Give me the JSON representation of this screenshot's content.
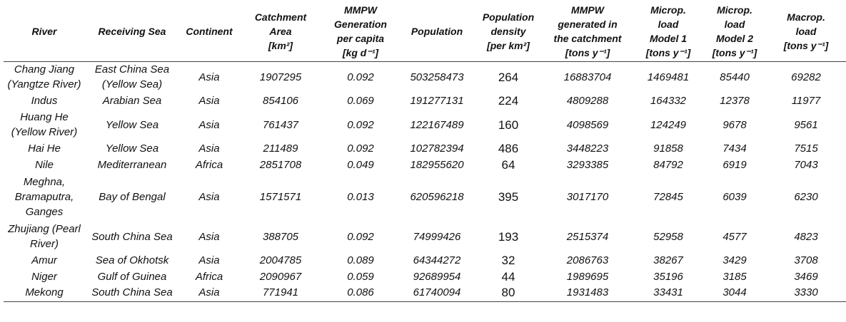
{
  "table": {
    "headers": [
      {
        "lines": [
          "River"
        ]
      },
      {
        "lines": [
          "Receiving Sea"
        ]
      },
      {
        "lines": [
          "Continent"
        ]
      },
      {
        "lines": [
          "Catchment",
          "Area",
          "[km²]"
        ]
      },
      {
        "lines": [
          "MMPW",
          "Generation",
          "per capita",
          "[kg d⁻¹]"
        ]
      },
      {
        "lines": [
          "Population"
        ]
      },
      {
        "lines": [
          "Population",
          "density",
          "[per km²]"
        ]
      },
      {
        "lines": [
          "MMPW",
          "generated in",
          "the catchment",
          "[tons y⁻¹]"
        ]
      },
      {
        "lines": [
          "Microp.",
          "load",
          "Model 1",
          "[tons y⁻¹]"
        ]
      },
      {
        "lines": [
          "Microp.",
          "load",
          "Model 2",
          "[tons y⁻¹]"
        ]
      },
      {
        "lines": [
          "Macrop.",
          "load",
          "[tons y⁻¹]"
        ]
      }
    ],
    "rows": [
      {
        "river": [
          "Chang Jiang",
          "(Yangtze River)"
        ],
        "sea": [
          "East China Sea",
          "(Yellow Sea)"
        ],
        "continent": "Asia",
        "area": "1907295",
        "per_capita": "0.092",
        "population": "503258473",
        "density": "264",
        "mmpw": "16883704",
        "micro1": "1469481",
        "micro2": "85440",
        "macro": "69282"
      },
      {
        "river": [
          "Indus"
        ],
        "sea": [
          "Arabian Sea"
        ],
        "continent": "Asia",
        "area": "854106",
        "per_capita": "0.069",
        "population": "191277131",
        "density": "224",
        "mmpw": "4809288",
        "micro1": "164332",
        "micro2": "12378",
        "macro": "11977"
      },
      {
        "river": [
          "Huang He",
          "(Yellow River)"
        ],
        "sea": [
          "Yellow Sea"
        ],
        "continent": "Asia",
        "area": "761437",
        "per_capita": "0.092",
        "population": "122167489",
        "density": "160",
        "mmpw": "4098569",
        "micro1": "124249",
        "micro2": "9678",
        "macro": "9561"
      },
      {
        "river": [
          "Hai He"
        ],
        "sea": [
          "Yellow Sea"
        ],
        "continent": "Asia",
        "area": "211489",
        "per_capita": "0.092",
        "population": "102782394",
        "density": "486",
        "mmpw": "3448223",
        "micro1": "91858",
        "micro2": "7434",
        "macro": "7515"
      },
      {
        "river": [
          "Nile"
        ],
        "sea": [
          "Mediterranean"
        ],
        "continent": "Africa",
        "area": "2851708",
        "per_capita": "0.049",
        "population": "182955620",
        "density": "64",
        "mmpw": "3293385",
        "micro1": "84792",
        "micro2": "6919",
        "macro": "7043"
      },
      {
        "river": [
          "Meghna,",
          "Bramaputra,",
          "Ganges"
        ],
        "sea": [
          "Bay of Bengal"
        ],
        "continent": "Asia",
        "area": "1571571",
        "per_capita": "0.013",
        "population": "620596218",
        "density": "395",
        "mmpw": "3017170",
        "micro1": "72845",
        "micro2": "6039",
        "macro": "6230"
      },
      {
        "river": [
          "Zhujiang (Pearl",
          "River)"
        ],
        "sea": [
          "South China Sea"
        ],
        "continent": "Asia",
        "area": "388705",
        "per_capita": "0.092",
        "population": "74999426",
        "density": "193",
        "mmpw": "2515374",
        "micro1": "52958",
        "micro2": "4577",
        "macro": "4823"
      },
      {
        "river": [
          "Amur"
        ],
        "sea": [
          "Sea of Okhotsk"
        ],
        "continent": "Asia",
        "area": "2004785",
        "per_capita": "0.089",
        "population": "64344272",
        "density": "32",
        "mmpw": "2086763",
        "micro1": "38267",
        "micro2": "3429",
        "macro": "3708"
      },
      {
        "river": [
          "Niger"
        ],
        "sea": [
          "Gulf of Guinea"
        ],
        "continent": "Africa",
        "area": "2090967",
        "per_capita": "0.059",
        "population": "92689954",
        "density": "44",
        "mmpw": "1989695",
        "micro1": "35196",
        "micro2": "3185",
        "macro": "3469"
      },
      {
        "river": [
          "Mekong"
        ],
        "sea": [
          "South China Sea"
        ],
        "continent": "Asia",
        "area": "771941",
        "per_capita": "0.086",
        "population": "61740094",
        "density": "80",
        "mmpw": "1931483",
        "micro1": "33431",
        "micro2": "3044",
        "macro": "3330"
      }
    ]
  }
}
